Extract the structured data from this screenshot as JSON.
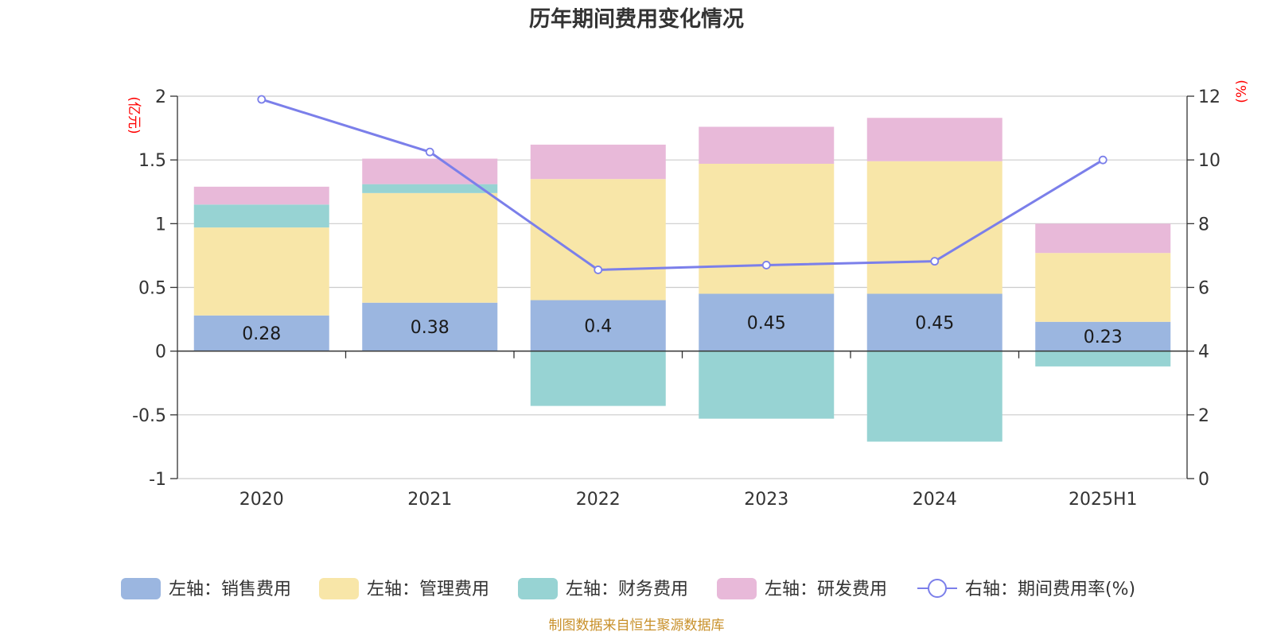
{
  "title": "历年期间费用变化情况",
  "source": "制图数据来自恒生聚源数据库",
  "left_unit": "(亿元)",
  "right_unit": "(%)",
  "legend": [
    {
      "label": "左轴：销售费用",
      "color": "#9bb6e0"
    },
    {
      "label": "左轴：管理费用",
      "color": "#f8e6a8"
    },
    {
      "label": "左轴：财务费用",
      "color": "#97d3d3"
    },
    {
      "label": "左轴：研发费用",
      "color": "#e8b9d9"
    },
    {
      "label": "右轴：期间费用率(%)",
      "color": "#7b7fea"
    }
  ],
  "chart_data": {
    "type": "bar",
    "stacked": true,
    "categories": [
      "2020",
      "2021",
      "2022",
      "2023",
      "2024",
      "2025H1"
    ],
    "series": [
      {
        "name": "左轴：销售费用",
        "axis": "left",
        "color": "#9bb6e0",
        "values": [
          0.28,
          0.38,
          0.4,
          0.45,
          0.45,
          0.23
        ],
        "data_labels": [
          "0.28",
          "0.38",
          "0.4",
          "0.45",
          "0.45",
          "0.23"
        ]
      },
      {
        "name": "左轴：管理费用",
        "axis": "left",
        "color": "#f8e6a8",
        "values": [
          0.69,
          0.86,
          0.95,
          1.02,
          1.04,
          0.54
        ]
      },
      {
        "name": "左轴：财务费用",
        "axis": "left",
        "color": "#97d3d3",
        "values": [
          0.18,
          0.07,
          -0.43,
          -0.53,
          -0.71,
          -0.12
        ]
      },
      {
        "name": "左轴：研发费用",
        "axis": "left",
        "color": "#e8b9d9",
        "values": [
          0.14,
          0.2,
          0.27,
          0.29,
          0.34,
          0.23
        ]
      },
      {
        "name": "右轴：期间费用率(%)",
        "axis": "right",
        "type": "line",
        "color": "#7b7fea",
        "values": [
          11.9,
          10.25,
          6.55,
          6.7,
          6.82,
          10.0
        ]
      }
    ],
    "y_left": {
      "min": -1,
      "max": 2,
      "ticks": [
        "-1",
        "-0.5",
        "0",
        "0.5",
        "1",
        "1.5",
        "2"
      ]
    },
    "y_right": {
      "min": 0,
      "max": 12,
      "ticks": [
        "0",
        "2",
        "4",
        "6",
        "8",
        "10",
        "12"
      ]
    },
    "grid": true,
    "legend_position": "bottom"
  }
}
